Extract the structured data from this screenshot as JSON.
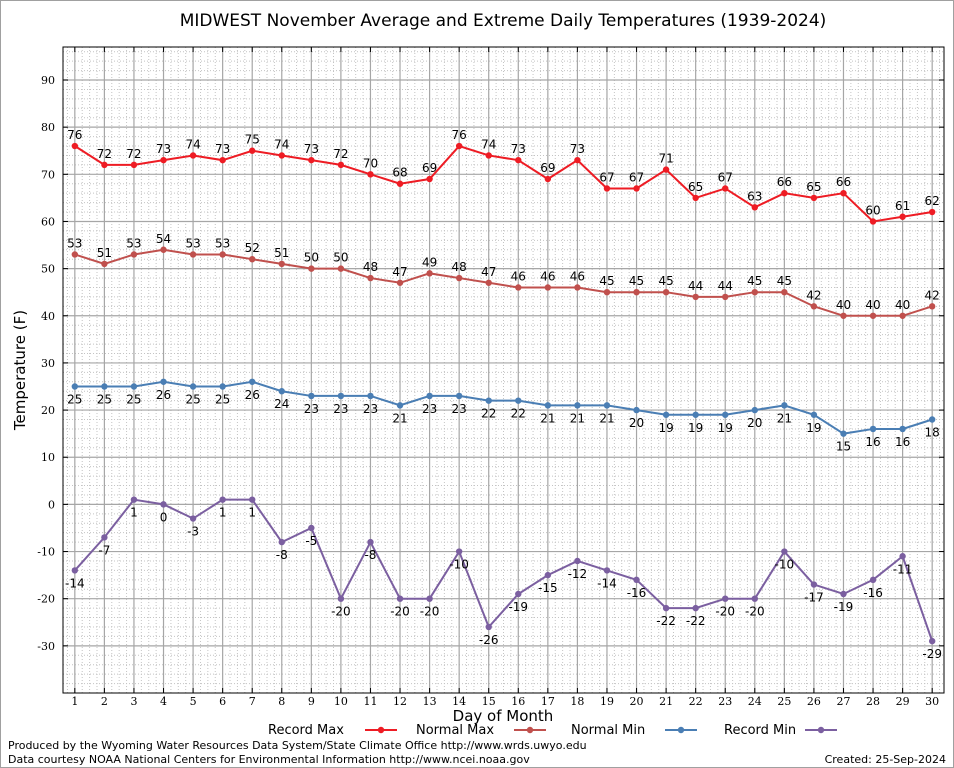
{
  "chart_data": {
    "type": "line",
    "title": "MIDWEST November Average and Extreme Daily Temperatures (1939-2024)",
    "xlabel": "Day of Month",
    "ylabel": "Temperature (F)",
    "x": [
      1,
      2,
      3,
      4,
      5,
      6,
      7,
      8,
      9,
      10,
      11,
      12,
      13,
      14,
      15,
      16,
      17,
      18,
      19,
      20,
      21,
      22,
      23,
      24,
      25,
      26,
      27,
      28,
      29,
      30
    ],
    "xlim": [
      0.6,
      30.4
    ],
    "ylim": [
      -40,
      97
    ],
    "yticks": [
      -30,
      -20,
      -10,
      0,
      10,
      20,
      30,
      40,
      50,
      60,
      70,
      80,
      90
    ],
    "grid": true,
    "legend_position": "bottom",
    "series": [
      {
        "name": "Record Max",
        "color": "#ee1c24",
        "label_position": "above",
        "values": [
          76,
          72,
          72,
          73,
          74,
          73,
          75,
          74,
          73,
          72,
          70,
          68,
          69,
          76,
          74,
          73,
          69,
          73,
          67,
          67,
          71,
          65,
          67,
          63,
          66,
          65,
          66,
          60,
          61,
          62
        ]
      },
      {
        "name": "Normal Max",
        "color": "#c0504d",
        "label_position": "above",
        "values": [
          53,
          51,
          53,
          54,
          53,
          53,
          52,
          51,
          50,
          50,
          48,
          47,
          49,
          48,
          47,
          46,
          46,
          46,
          45,
          45,
          45,
          44,
          44,
          45,
          45,
          42,
          40,
          40,
          40,
          42
        ]
      },
      {
        "name": "Normal Min",
        "color": "#4a7eb4",
        "label_position": "below",
        "values": [
          25,
          25,
          25,
          26,
          25,
          25,
          26,
          24,
          23,
          23,
          23,
          21,
          23,
          23,
          22,
          22,
          21,
          21,
          21,
          20,
          19,
          19,
          19,
          20,
          21,
          19,
          15,
          16,
          16,
          18
        ]
      },
      {
        "name": "Record Min",
        "color": "#7b5fa0",
        "label_position": "below",
        "values": [
          -14,
          -7,
          1,
          0,
          -3,
          1,
          1,
          -8,
          -5,
          -20,
          -8,
          -20,
          -20,
          -10,
          -26,
          -19,
          -15,
          -12,
          -14,
          -16,
          -22,
          -22,
          -20,
          -20,
          -10,
          -17,
          -19,
          -16,
          -11,
          -29
        ]
      }
    ]
  },
  "footer": {
    "produced_by": "Produced by the Wyoming Water Resources Data System/State Climate Office http://www.wrds.uwyo.edu",
    "data_courtesy": "Data courtesy NOAA National Centers for Environmental Information http://www.ncei.noaa.gov",
    "created": "Created: 25-Sep-2024"
  }
}
